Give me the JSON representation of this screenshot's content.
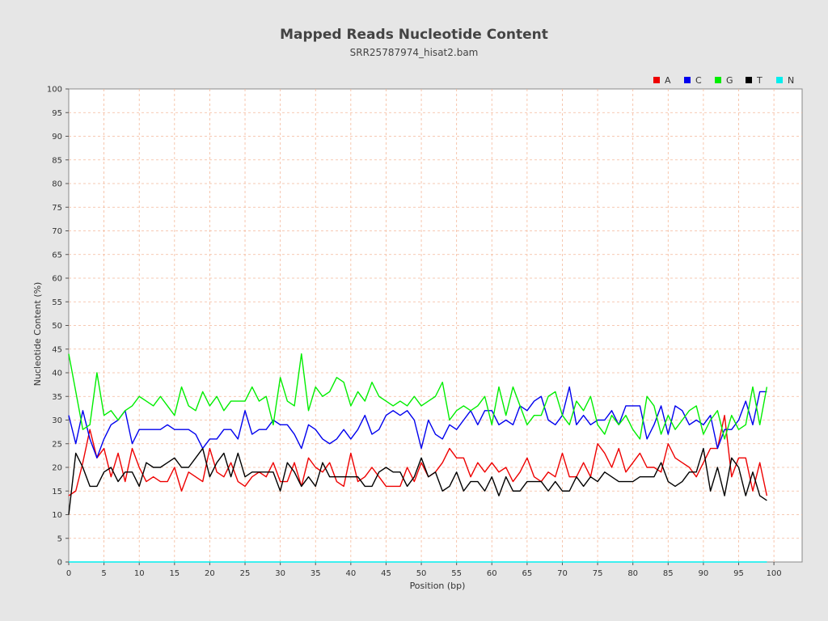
{
  "chart_data": {
    "type": "line",
    "title": "Mapped Reads Nucleotide Content",
    "subtitle": "SRR25787974_hisat2.bam",
    "xlabel": "Position (bp)",
    "ylabel": "Nucleotide Content (%)",
    "xlim": [
      0,
      104
    ],
    "ylim": [
      0,
      100
    ],
    "x_ticks": [
      0,
      5,
      10,
      15,
      20,
      25,
      30,
      35,
      40,
      45,
      50,
      55,
      60,
      65,
      70,
      75,
      80,
      85,
      90,
      95,
      100
    ],
    "y_ticks": [
      0,
      5,
      10,
      15,
      20,
      25,
      30,
      35,
      40,
      45,
      50,
      55,
      60,
      65,
      70,
      75,
      80,
      85,
      90,
      95,
      100
    ],
    "grid": true,
    "legend_position": "top-right",
    "x": [
      0,
      1,
      2,
      3,
      4,
      5,
      6,
      7,
      8,
      9,
      10,
      11,
      12,
      13,
      14,
      15,
      16,
      17,
      18,
      19,
      20,
      21,
      22,
      23,
      24,
      25,
      26,
      27,
      28,
      29,
      30,
      31,
      32,
      33,
      34,
      35,
      36,
      37,
      38,
      39,
      40,
      41,
      42,
      43,
      44,
      45,
      46,
      47,
      48,
      49,
      50,
      51,
      52,
      53,
      54,
      55,
      56,
      57,
      58,
      59,
      60,
      61,
      62,
      63,
      64,
      65,
      66,
      67,
      68,
      69,
      70,
      71,
      72,
      73,
      74,
      75,
      76,
      77,
      78,
      79,
      80,
      81,
      82,
      83,
      84,
      85,
      86,
      87,
      88,
      89,
      90,
      91,
      92,
      93,
      94,
      95,
      96,
      97,
      98,
      99
    ],
    "series": [
      {
        "name": "A",
        "color": "#ee0000",
        "values": [
          14,
          15,
          21,
          28,
          22,
          24,
          18,
          23,
          17,
          24,
          20,
          17,
          18,
          17,
          17,
          20,
          15,
          19,
          18,
          17,
          24,
          19,
          18,
          21,
          17,
          16,
          18,
          19,
          18,
          21,
          17,
          17,
          21,
          16,
          22,
          20,
          19,
          21,
          17,
          16,
          23,
          17,
          18,
          20,
          18,
          16,
          16,
          16,
          20,
          17,
          21,
          18,
          19,
          21,
          24,
          22,
          22,
          18,
          21,
          19,
          21,
          19,
          20,
          17,
          19,
          22,
          18,
          17,
          19,
          18,
          23,
          18,
          18,
          21,
          18,
          25,
          23,
          20,
          24,
          19,
          21,
          23,
          20,
          20,
          19,
          25,
          22,
          21,
          20,
          18,
          21,
          24,
          24,
          31,
          18,
          22,
          22,
          15,
          21,
          14
        ]
      },
      {
        "name": "C",
        "color": "#0000ee",
        "values": [
          31,
          25,
          32,
          26,
          22,
          26,
          29,
          30,
          32,
          25,
          28,
          28,
          28,
          28,
          29,
          28,
          28,
          28,
          27,
          24,
          26,
          26,
          28,
          28,
          26,
          32,
          27,
          28,
          28,
          30,
          29,
          29,
          27,
          24,
          29,
          28,
          26,
          25,
          26,
          28,
          26,
          28,
          31,
          27,
          28,
          31,
          32,
          31,
          32,
          30,
          24,
          30,
          27,
          26,
          29,
          28,
          30,
          32,
          29,
          32,
          32,
          29,
          30,
          29,
          33,
          32,
          34,
          35,
          30,
          29,
          31,
          37,
          29,
          31,
          29,
          30,
          30,
          32,
          29,
          33,
          33,
          33,
          26,
          29,
          33,
          27,
          33,
          32,
          29,
          30,
          29,
          31,
          24,
          28,
          28,
          30,
          34,
          29,
          36,
          36
        ]
      },
      {
        "name": "G",
        "color": "#00ee00",
        "values": [
          44,
          36,
          28,
          29,
          40,
          31,
          32,
          30,
          32,
          33,
          35,
          34,
          33,
          35,
          33,
          31,
          37,
          33,
          32,
          36,
          33,
          35,
          32,
          34,
          34,
          34,
          37,
          34,
          35,
          29,
          39,
          34,
          33,
          44,
          32,
          37,
          35,
          36,
          39,
          38,
          33,
          36,
          34,
          38,
          35,
          34,
          33,
          34,
          33,
          35,
          33,
          34,
          35,
          38,
          30,
          32,
          33,
          32,
          33,
          35,
          29,
          37,
          31,
          37,
          33,
          29,
          31,
          31,
          35,
          36,
          31,
          29,
          34,
          32,
          35,
          29,
          27,
          31,
          29,
          31,
          28,
          26,
          35,
          33,
          27,
          31,
          28,
          30,
          32,
          33,
          27,
          30,
          32,
          26,
          31,
          28,
          29,
          37,
          29,
          37
        ]
      },
      {
        "name": "T",
        "color": "#000000",
        "values": [
          10,
          23,
          20,
          16,
          16,
          19,
          20,
          17,
          19,
          19,
          16,
          21,
          20,
          20,
          21,
          22,
          20,
          20,
          22,
          24,
          18,
          21,
          23,
          18,
          23,
          18,
          19,
          19,
          19,
          19,
          15,
          21,
          19,
          16,
          18,
          16,
          21,
          18,
          18,
          18,
          18,
          18,
          16,
          16,
          19,
          20,
          19,
          19,
          16,
          18,
          22,
          18,
          19,
          15,
          16,
          19,
          15,
          17,
          17,
          15,
          18,
          14,
          18,
          15,
          15,
          17,
          17,
          17,
          15,
          17,
          15,
          15,
          18,
          16,
          18,
          17,
          19,
          18,
          17,
          17,
          17,
          18,
          18,
          18,
          21,
          17,
          16,
          17,
          19,
          19,
          24,
          15,
          20,
          14,
          22,
          20,
          14,
          19,
          14,
          13
        ]
      },
      {
        "name": "N",
        "color": "#00eeee",
        "values": [
          0,
          0,
          0,
          0,
          0,
          0,
          0,
          0,
          0,
          0,
          0,
          0,
          0,
          0,
          0,
          0,
          0,
          0,
          0,
          0,
          0,
          0,
          0,
          0,
          0,
          0,
          0,
          0,
          0,
          0,
          0,
          0,
          0,
          0,
          0,
          0,
          0,
          0,
          0,
          0,
          0,
          0,
          0,
          0,
          0,
          0,
          0,
          0,
          0,
          0,
          0,
          0,
          0,
          0,
          0,
          0,
          0,
          0,
          0,
          0,
          0,
          0,
          0,
          0,
          0,
          0,
          0,
          0,
          0,
          0,
          0,
          0,
          0,
          0,
          0,
          0,
          0,
          0,
          0,
          0,
          0,
          0,
          0,
          0,
          0,
          0,
          0,
          0,
          0,
          0,
          0,
          0,
          0,
          0,
          0,
          0,
          0,
          0,
          0,
          0
        ]
      }
    ]
  }
}
